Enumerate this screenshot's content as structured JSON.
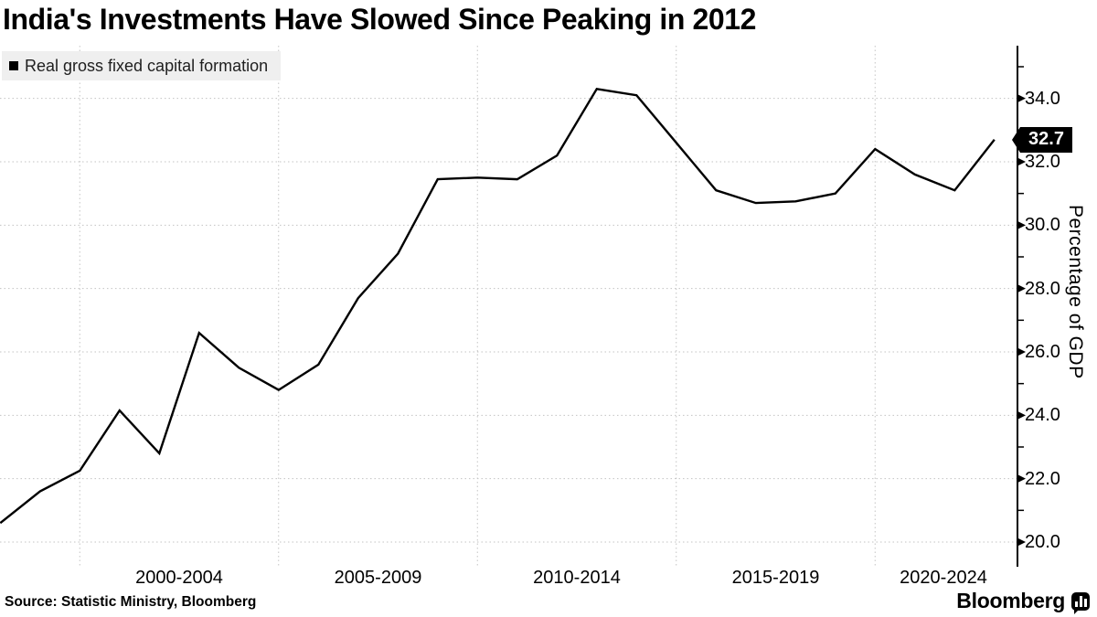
{
  "title": "India's Investments Have Slowed Since Peaking in 2012",
  "legend": {
    "label": "Real gross fixed capital formation",
    "marker_color": "#000000"
  },
  "badge": {
    "value": "32.7"
  },
  "y_axis_title": "Percentage of GDP",
  "source": "Source: Statistic Ministry, Bloomberg",
  "logo_text": "Bloomberg",
  "colors": {
    "line": "#000000",
    "gridline": "#c3c3c3",
    "axis": "#000000",
    "legend_bg": "#efefef",
    "badge_bg": "#000000",
    "badge_text": "#ffffff"
  },
  "chart_data": {
    "type": "line",
    "title": "India's Investments Have Slowed Since Peaking in 2012",
    "ylabel": "Percentage of GDP",
    "xlabel": "",
    "grid": true,
    "legend_position": "top-left",
    "series": [
      {
        "name": "Real gross fixed capital formation",
        "x": [
          1997.5,
          1998.5,
          1999.5,
          2000.5,
          2001.5,
          2002.5,
          2003.5,
          2004.5,
          2005.5,
          2006.5,
          2007.5,
          2008.5,
          2009.5,
          2010.5,
          2011.5,
          2012.5,
          2013.5,
          2014.5,
          2015.5,
          2016.5,
          2017.5,
          2018.5,
          2019.5,
          2020.5,
          2021.5,
          2022.5
        ],
        "values": [
          20.6,
          21.6,
          22.25,
          24.15,
          22.8,
          26.6,
          25.5,
          24.8,
          25.6,
          27.7,
          29.1,
          31.45,
          31.5,
          31.45,
          32.2,
          34.3,
          34.1,
          32.6,
          31.1,
          30.7,
          30.75,
          31.0,
          32.4,
          31.6,
          31.1,
          32.7
        ]
      }
    ],
    "last_value_label": "32.7",
    "x_tick_labels": [
      "2000-2004",
      "2005-2009",
      "2010-2014",
      "2015-2019",
      "2020-2024"
    ],
    "x_tick_center_years": [
      2002,
      2007,
      2012,
      2017,
      2022
    ],
    "x_gridline_years": [
      1999.5,
      2004.5,
      2009.5,
      2014.5,
      2019.5
    ],
    "y_major_ticks": [
      20,
      22,
      24,
      26,
      28,
      30,
      32,
      34
    ],
    "y_minor_ticks": [
      21,
      23,
      25,
      27,
      29,
      31,
      33,
      35
    ],
    "ylim": [
      19.3,
      35.6
    ]
  }
}
